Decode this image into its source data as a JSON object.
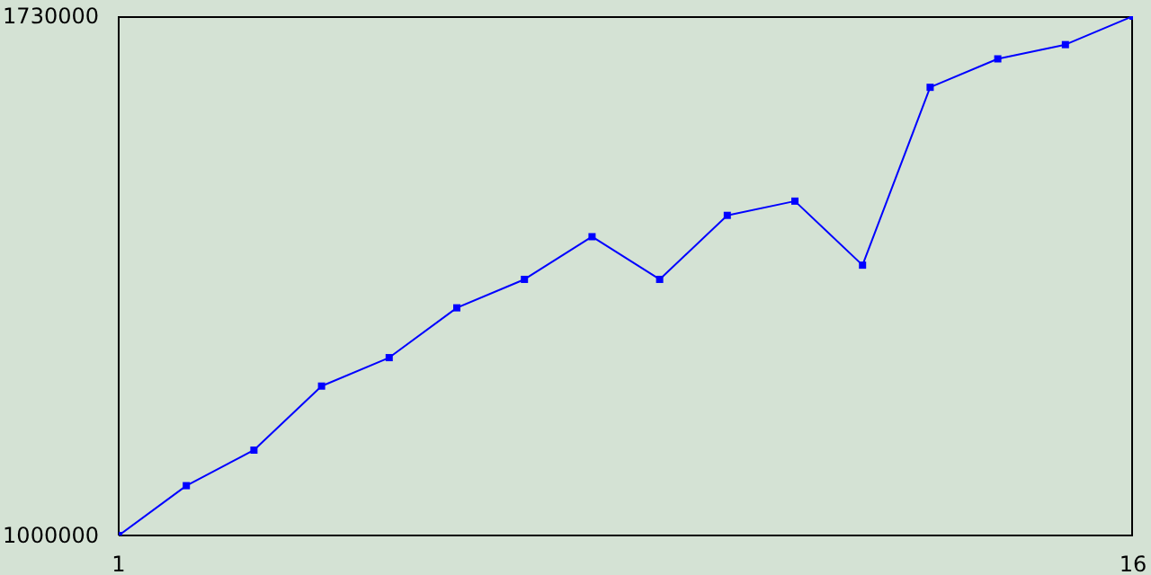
{
  "chart_data": {
    "type": "line",
    "x": [
      1,
      2,
      3,
      4,
      5,
      6,
      7,
      8,
      9,
      10,
      11,
      12,
      13,
      14,
      15,
      16
    ],
    "series": [
      {
        "color": "#0000ff",
        "values": [
          1000000,
          1070000,
          1120000,
          1210000,
          1250000,
          1320000,
          1360000,
          1420000,
          1360000,
          1450000,
          1470000,
          1380000,
          1630000,
          1670000,
          1690000,
          1730000
        ]
      }
    ],
    "xlim": [
      1,
      16
    ],
    "xticks": [
      1,
      16
    ],
    "ylim": [
      1000000,
      1730000
    ],
    "yticks": [
      1000000,
      1730000
    ],
    "marker": "square"
  }
}
